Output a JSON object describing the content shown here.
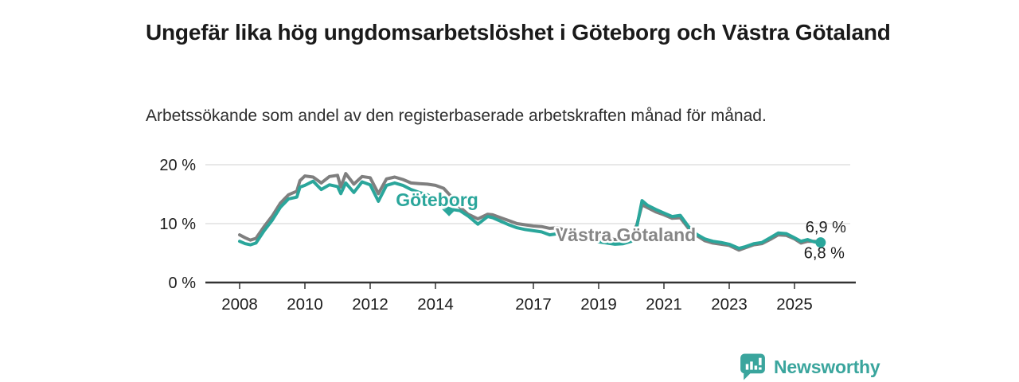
{
  "header": {
    "title": "Ungefär lika hög ungdomsarbetslöshet i Göteborg och Västra Götaland",
    "subtitle": "Arbetssökande som andel av den registerbaserade arbetskraften månad för månad."
  },
  "branding": {
    "name": "Newsworthy",
    "logo_icon": "newsworthy-speech-bubble-bars-icon",
    "color": "#3aa59d"
  },
  "colors": {
    "goteborg": "#2aa69b",
    "vastra_gotaland": "#7f7f7f",
    "vastra_gotaland_label": "#868686",
    "grid": "#d9d9d9",
    "axis": "#333333",
    "text": "#1d1d1d"
  },
  "chart_data": {
    "type": "line",
    "title": "Ungefär lika hög ungdomsarbetslöshet i Göteborg och Västra Götaland",
    "subtitle": "Arbetssökande som andel av den registerbaserade arbetskraften månad för månad.",
    "unit": "%",
    "grid": "horizontal",
    "legend_position": "inline-labels",
    "x_range": [
      2006.95,
      2026.9
    ],
    "y_range": [
      0,
      21
    ],
    "x_ticks": [
      {
        "value": 2008,
        "label": "2008"
      },
      {
        "value": 2010,
        "label": "2010"
      },
      {
        "value": 2012,
        "label": "2012"
      },
      {
        "value": 2014,
        "label": "2014"
      },
      {
        "value": 2017,
        "label": "2017"
      },
      {
        "value": 2019,
        "label": "2019"
      },
      {
        "value": 2021,
        "label": "2021"
      },
      {
        "value": 2023,
        "label": "2023"
      },
      {
        "value": 2025,
        "label": "2025"
      }
    ],
    "y_ticks": [
      {
        "value": 0,
        "label": "0 %"
      },
      {
        "value": 10,
        "label": "10 %"
      },
      {
        "value": 20,
        "label": "20 %"
      }
    ],
    "series": [
      {
        "name": "Västra Götaland",
        "color": "#7f7f7f",
        "end_label": "6,9 %",
        "end_label_offset": [
          -19,
          -12
        ],
        "end_dot": false,
        "points": [
          [
            2008.0,
            8.1
          ],
          [
            2008.17,
            7.6
          ],
          [
            2008.33,
            7.2
          ],
          [
            2008.5,
            7.5
          ],
          [
            2008.75,
            9.5
          ],
          [
            2009.0,
            11.3
          ],
          [
            2009.25,
            13.5
          ],
          [
            2009.5,
            14.9
          ],
          [
            2009.75,
            15.5
          ],
          [
            2009.85,
            17.3
          ],
          [
            2010.0,
            18.1
          ],
          [
            2010.25,
            17.9
          ],
          [
            2010.5,
            16.9
          ],
          [
            2010.75,
            18.0
          ],
          [
            2011.0,
            18.2
          ],
          [
            2011.1,
            16.2
          ],
          [
            2011.25,
            18.5
          ],
          [
            2011.5,
            16.7
          ],
          [
            2011.75,
            18.0
          ],
          [
            2012.0,
            17.8
          ],
          [
            2012.25,
            15.1
          ],
          [
            2012.5,
            17.6
          ],
          [
            2012.75,
            17.9
          ],
          [
            2013.0,
            17.5
          ],
          [
            2013.25,
            16.9
          ],
          [
            2013.5,
            16.8
          ],
          [
            2013.75,
            16.7
          ],
          [
            2014.0,
            16.5
          ],
          [
            2014.25,
            16.0
          ],
          [
            2014.5,
            14.5
          ],
          [
            2014.75,
            12.8
          ],
          [
            2015.0,
            11.6
          ],
          [
            2015.3,
            10.8
          ],
          [
            2015.6,
            11.6
          ],
          [
            2015.75,
            11.5
          ],
          [
            2016.0,
            11.0
          ],
          [
            2016.25,
            10.5
          ],
          [
            2016.5,
            10.0
          ],
          [
            2016.75,
            9.8
          ],
          [
            2017.0,
            9.6
          ],
          [
            2017.25,
            9.5
          ],
          [
            2017.5,
            9.2
          ],
          [
            2017.75,
            9.3
          ],
          [
            2018.0,
            8.8
          ],
          [
            2018.25,
            8.4
          ],
          [
            2018.5,
            8.1
          ],
          [
            2018.75,
            8.2
          ],
          [
            2019.0,
            7.8
          ],
          [
            2019.25,
            7.5
          ],
          [
            2019.5,
            7.3
          ],
          [
            2019.75,
            7.4
          ],
          [
            2020.0,
            7.9
          ],
          [
            2020.17,
            9.8
          ],
          [
            2020.33,
            13.2
          ],
          [
            2020.5,
            12.7
          ],
          [
            2020.75,
            12.0
          ],
          [
            2021.0,
            11.5
          ],
          [
            2021.25,
            10.9
          ],
          [
            2021.5,
            11.0
          ],
          [
            2021.75,
            9.2
          ],
          [
            2022.0,
            8.0
          ],
          [
            2022.25,
            7.1
          ],
          [
            2022.5,
            6.7
          ],
          [
            2022.75,
            6.5
          ],
          [
            2023.0,
            6.3
          ],
          [
            2023.3,
            5.5
          ],
          [
            2023.5,
            5.9
          ],
          [
            2023.75,
            6.4
          ],
          [
            2024.0,
            6.6
          ],
          [
            2024.25,
            7.3
          ],
          [
            2024.5,
            8.1
          ],
          [
            2024.75,
            8.0
          ],
          [
            2025.0,
            7.4
          ],
          [
            2025.2,
            6.7
          ],
          [
            2025.4,
            7.0
          ],
          [
            2025.6,
            7.0
          ],
          [
            2025.8,
            6.9
          ]
        ]
      },
      {
        "name": "Göteborg",
        "color": "#2aa69b",
        "end_label": "6,8 %",
        "end_label_offset": [
          -21,
          20
        ],
        "end_dot": true,
        "points": [
          [
            2008.0,
            7.0
          ],
          [
            2008.17,
            6.6
          ],
          [
            2008.33,
            6.4
          ],
          [
            2008.5,
            6.7
          ],
          [
            2008.75,
            8.8
          ],
          [
            2009.0,
            10.6
          ],
          [
            2009.25,
            12.8
          ],
          [
            2009.5,
            14.2
          ],
          [
            2009.75,
            14.5
          ],
          [
            2009.85,
            16.2
          ],
          [
            2010.0,
            16.5
          ],
          [
            2010.25,
            17.2
          ],
          [
            2010.5,
            15.8
          ],
          [
            2010.75,
            16.6
          ],
          [
            2011.0,
            16.3
          ],
          [
            2011.1,
            15.1
          ],
          [
            2011.25,
            16.9
          ],
          [
            2011.5,
            15.3
          ],
          [
            2011.75,
            17.1
          ],
          [
            2012.0,
            16.6
          ],
          [
            2012.25,
            13.8
          ],
          [
            2012.5,
            16.5
          ],
          [
            2012.75,
            16.9
          ],
          [
            2013.0,
            16.5
          ],
          [
            2013.25,
            15.8
          ],
          [
            2013.5,
            15.3
          ],
          [
            2013.75,
            14.9
          ],
          [
            2014.0,
            14.0
          ],
          [
            2014.25,
            12.9
          ],
          [
            2014.5,
            12.4
          ],
          [
            2014.75,
            12.2
          ],
          [
            2015.0,
            11.3
          ],
          [
            2015.3,
            9.9
          ],
          [
            2015.6,
            11.2
          ],
          [
            2015.75,
            11.0
          ],
          [
            2016.0,
            10.4
          ],
          [
            2016.25,
            9.8
          ],
          [
            2016.5,
            9.3
          ],
          [
            2016.75,
            9.0
          ],
          [
            2017.0,
            8.8
          ],
          [
            2017.25,
            8.6
          ],
          [
            2017.5,
            8.1
          ],
          [
            2017.75,
            8.3
          ],
          [
            2018.0,
            7.8
          ],
          [
            2018.25,
            7.5
          ],
          [
            2018.5,
            7.2
          ],
          [
            2018.75,
            7.3
          ],
          [
            2019.0,
            6.9
          ],
          [
            2019.25,
            6.7
          ],
          [
            2019.5,
            6.5
          ],
          [
            2019.75,
            6.6
          ],
          [
            2020.0,
            7.0
          ],
          [
            2020.17,
            9.5
          ],
          [
            2020.33,
            13.9
          ],
          [
            2020.5,
            13.1
          ],
          [
            2020.75,
            12.4
          ],
          [
            2021.0,
            11.8
          ],
          [
            2021.25,
            11.2
          ],
          [
            2021.5,
            11.4
          ],
          [
            2021.75,
            9.5
          ],
          [
            2022.0,
            8.2
          ],
          [
            2022.25,
            7.4
          ],
          [
            2022.5,
            7.0
          ],
          [
            2022.75,
            6.8
          ],
          [
            2023.0,
            6.5
          ],
          [
            2023.3,
            5.8
          ],
          [
            2023.5,
            6.1
          ],
          [
            2023.75,
            6.6
          ],
          [
            2024.0,
            6.8
          ],
          [
            2024.25,
            7.6
          ],
          [
            2024.5,
            8.4
          ],
          [
            2024.75,
            8.3
          ],
          [
            2025.0,
            7.6
          ],
          [
            2025.2,
            7.0
          ],
          [
            2025.4,
            7.3
          ],
          [
            2025.6,
            6.9
          ],
          [
            2025.8,
            6.8
          ]
        ]
      }
    ],
    "annotations": [
      {
        "text": "Göteborg",
        "series": "Göteborg",
        "color": "#2aa69b",
        "x": 2014.05,
        "y": 13.0,
        "pointer": true
      },
      {
        "text": "Västra Götaland",
        "series": "Västra Götaland",
        "color": "#868686",
        "x": 2019.83,
        "y": 7.0,
        "pointer": false
      }
    ]
  }
}
